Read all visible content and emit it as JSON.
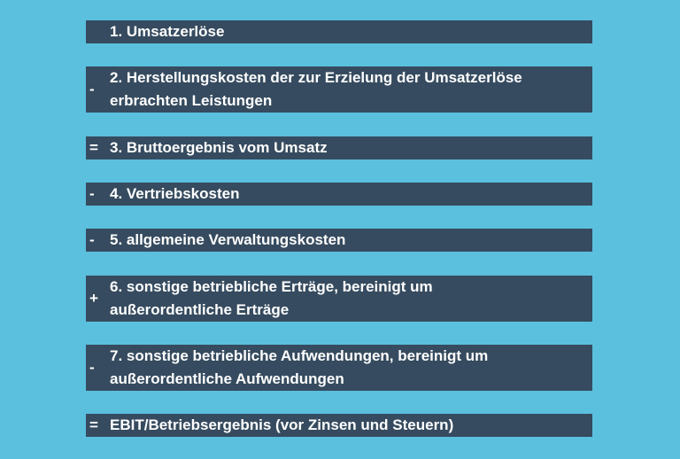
{
  "rows": [
    {
      "lines": [
        "1. Umsatzerlöse"
      ]
    },
    {
      "operator": "-",
      "lines": [
        "2. Herstellungskosten der zur Erzielung der Umsatzerlöse",
        "erbrachten Leistungen"
      ]
    },
    {
      "operator": "=",
      "lines": [
        "3. Bruttoergebnis vom Umsatz"
      ]
    },
    {
      "operator": "-",
      "lines": [
        "4. Vertriebskosten"
      ]
    },
    {
      "operator": "-",
      "lines": [
        "5. allgemeine Verwaltungskosten"
      ]
    },
    {
      "operator": "+",
      "lines": [
        "6. sonstige betriebliche Erträge, bereinigt um",
        "außerordentliche Erträge"
      ]
    },
    {
      "operator": "-",
      "lines": [
        "7. sonstige betriebliche Aufwendungen, bereinigt um",
        "außerordentliche Aufwendungen"
      ]
    },
    {
      "operator": "=",
      "lines": [
        "EBIT/Betriebsergebnis (vor Zinsen und Steuern)"
      ]
    }
  ]
}
